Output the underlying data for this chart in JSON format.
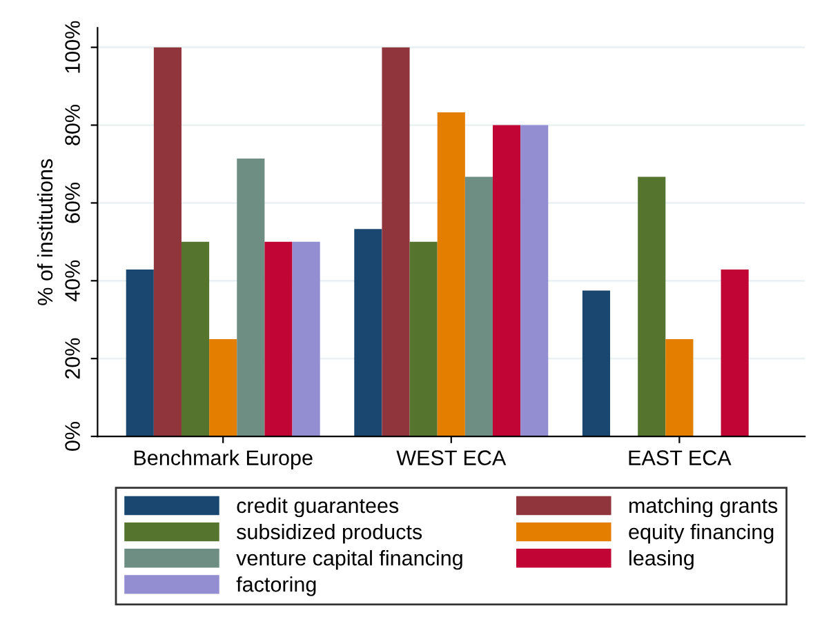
{
  "chart_data": {
    "type": "bar",
    "ylabel": "% of institutions",
    "categories": [
      "Benchmark Europe",
      "WEST ECA",
      "EAST ECA"
    ],
    "series": [
      {
        "name": "credit guarantees",
        "color": "#1a476f",
        "values": [
          42.9,
          53.3,
          37.5
        ]
      },
      {
        "name": "matching grants",
        "color": "#90353b",
        "values": [
          100,
          100,
          0
        ]
      },
      {
        "name": "subsidized products",
        "color": "#55752f",
        "values": [
          50,
          50,
          66.7
        ]
      },
      {
        "name": "equity financing",
        "color": "#e37e00",
        "values": [
          25,
          83.3,
          25
        ]
      },
      {
        "name": "venture capital financing",
        "color": "#6e8e84",
        "values": [
          71.4,
          66.7,
          0
        ]
      },
      {
        "name": "leasing",
        "color": "#c10534",
        "values": [
          50,
          80,
          42.9
        ]
      },
      {
        "name": "factoring",
        "color": "#938dd2",
        "values": [
          50,
          80,
          0
        ]
      }
    ],
    "ylim": [
      0,
      105
    ],
    "yticks": [
      {
        "value": 0,
        "label": "0%"
      },
      {
        "value": 20,
        "label": "20%"
      },
      {
        "value": 40,
        "label": "40%"
      },
      {
        "value": 60,
        "label": "60%"
      },
      {
        "value": 80,
        "label": "80%"
      },
      {
        "value": 100,
        "label": "100%"
      }
    ],
    "grid": "y",
    "legend": "bottom"
  }
}
